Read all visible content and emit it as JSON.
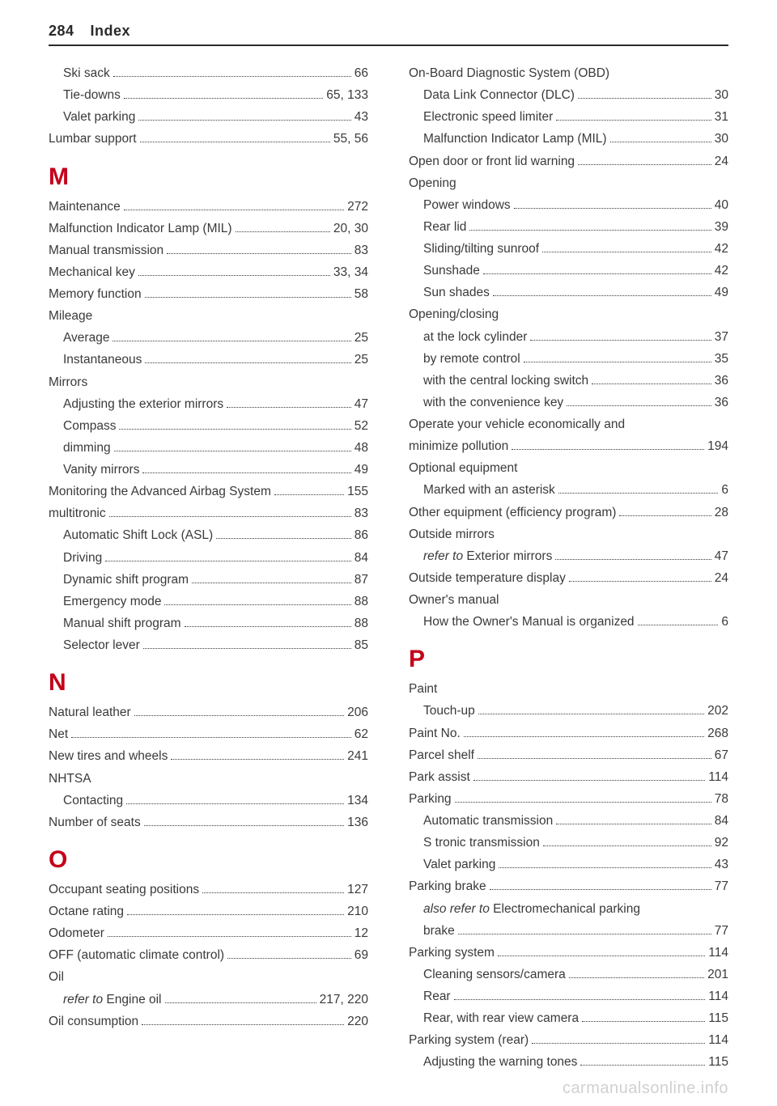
{
  "header": {
    "page_number": "284",
    "title": "Index"
  },
  "watermark": "carmanualsonline.info",
  "left": {
    "pre": [
      {
        "label": "Ski sack",
        "page": "66",
        "sub": true
      },
      {
        "label": "Tie-downs",
        "page": "65, 133",
        "sub": true
      },
      {
        "label": "Valet parking",
        "page": "43",
        "sub": true
      },
      {
        "label": "Lumbar support",
        "page": "55, 56"
      }
    ],
    "M": {
      "letter": "M",
      "items": [
        {
          "label": "Maintenance",
          "page": "272"
        },
        {
          "label": "Malfunction Indicator Lamp (MIL)",
          "page": "20, 30"
        },
        {
          "label": "Manual transmission",
          "page": "83"
        },
        {
          "label": "Mechanical key",
          "page": "33, 34"
        },
        {
          "label": "Memory function",
          "page": "58"
        },
        {
          "label": "Mileage",
          "nopage": true
        },
        {
          "label": "Average",
          "page": "25",
          "sub": true
        },
        {
          "label": "Instantaneous",
          "page": "25",
          "sub": true
        },
        {
          "label": "Mirrors",
          "nopage": true
        },
        {
          "label": "Adjusting the exterior mirrors",
          "page": "47",
          "sub": true
        },
        {
          "label": "Compass",
          "page": "52",
          "sub": true
        },
        {
          "label": "dimming",
          "page": "48",
          "sub": true
        },
        {
          "label": "Vanity mirrors",
          "page": "49",
          "sub": true
        },
        {
          "label": "Monitoring the Advanced Airbag System",
          "page": "155",
          "tight": true
        },
        {
          "label": "multitronic",
          "page": "83"
        },
        {
          "label": "Automatic Shift Lock (ASL)",
          "page": "86",
          "sub": true
        },
        {
          "label": "Driving",
          "page": "84",
          "sub": true
        },
        {
          "label": "Dynamic shift program",
          "page": "87",
          "sub": true
        },
        {
          "label": "Emergency mode",
          "page": "88",
          "sub": true
        },
        {
          "label": "Manual shift program",
          "page": "88",
          "sub": true
        },
        {
          "label": "Selector lever",
          "page": "85",
          "sub": true
        }
      ]
    },
    "N": {
      "letter": "N",
      "items": [
        {
          "label": "Natural leather",
          "page": "206"
        },
        {
          "label": "Net",
          "page": "62"
        },
        {
          "label": "New tires and wheels",
          "page": "241"
        },
        {
          "label": "NHTSA",
          "nopage": true
        },
        {
          "label": "Contacting",
          "page": "134",
          "sub": true
        },
        {
          "label": "Number of seats",
          "page": "136"
        }
      ]
    },
    "O": {
      "letter": "O",
      "items": [
        {
          "label": "Occupant seating positions",
          "page": "127"
        },
        {
          "label": "Octane rating",
          "page": "210"
        },
        {
          "label": "Odometer",
          "page": "12"
        },
        {
          "label": "OFF (automatic climate control)",
          "page": "69"
        },
        {
          "label": "Oil",
          "nopage": true
        },
        {
          "italic_prefix": "refer to ",
          "label": "Engine oil",
          "page": "217, 220",
          "sub": true
        },
        {
          "label": "Oil consumption",
          "page": "220"
        }
      ]
    }
  },
  "right": {
    "pre": [
      {
        "label": "On-Board Diagnostic System (OBD)",
        "nopage": true
      },
      {
        "label": "Data Link Connector (DLC)",
        "page": "30",
        "sub": true
      },
      {
        "label": "Electronic speed limiter",
        "page": "31",
        "sub": true
      },
      {
        "label": "Malfunction Indicator Lamp (MIL)",
        "page": "30",
        "sub": true
      },
      {
        "label": "Open door or front lid warning",
        "page": "24"
      },
      {
        "label": "Opening",
        "nopage": true
      },
      {
        "label": "Power windows",
        "page": "40",
        "sub": true
      },
      {
        "label": "Rear lid",
        "page": "39",
        "sub": true
      },
      {
        "label": "Sliding/tilting sunroof",
        "page": "42",
        "sub": true
      },
      {
        "label": "Sunshade",
        "page": "42",
        "sub": true
      },
      {
        "label": "Sun shades",
        "page": "49",
        "sub": true
      },
      {
        "label": "Opening/closing",
        "nopage": true
      },
      {
        "label": "at the lock cylinder",
        "page": "37",
        "sub": true
      },
      {
        "label": "by remote control",
        "page": "35",
        "sub": true
      },
      {
        "label": "with the central locking switch",
        "page": "36",
        "sub": true
      },
      {
        "label": "with the convenience key",
        "page": "36",
        "sub": true
      },
      {
        "wrap_lines": [
          "Operate your vehicle economically and"
        ],
        "label": "minimize pollution",
        "page": "194"
      },
      {
        "label": "Optional equipment",
        "nopage": true
      },
      {
        "label": "Marked with an asterisk",
        "page": "6",
        "sub": true
      },
      {
        "label": "Other equipment (efficiency program)",
        "page": "28"
      },
      {
        "label": "Outside mirrors",
        "nopage": true
      },
      {
        "italic_prefix": "refer to ",
        "label": "Exterior mirrors",
        "page": "47",
        "sub": true
      },
      {
        "label": "Outside temperature display",
        "page": "24"
      },
      {
        "label": "Owner's manual",
        "nopage": true
      },
      {
        "label": "How the Owner's Manual is organized",
        "page": "6",
        "sub": true
      }
    ],
    "P": {
      "letter": "P",
      "items": [
        {
          "label": "Paint",
          "nopage": true
        },
        {
          "label": "Touch-up",
          "page": "202",
          "sub": true
        },
        {
          "label": "Paint No.",
          "page": "268"
        },
        {
          "label": "Parcel shelf",
          "page": "67"
        },
        {
          "label": "Park assist",
          "page": "114"
        },
        {
          "label": "Parking",
          "page": "78"
        },
        {
          "label": "Automatic transmission",
          "page": "84",
          "sub": true
        },
        {
          "label": "S tronic transmission",
          "page": "92",
          "sub": true
        },
        {
          "label": "Valet parking",
          "page": "43",
          "sub": true
        },
        {
          "label": "Parking brake",
          "page": "77"
        },
        {
          "wrap_lines_sub": [
            "<i>also refer to</i> Electromechanical parking"
          ],
          "label": "brake",
          "page": "77",
          "sub": true
        },
        {
          "label": "Parking system",
          "page": "114"
        },
        {
          "label": "Cleaning sensors/camera",
          "page": "201",
          "sub": true
        },
        {
          "label": "Rear",
          "page": "114",
          "sub": true
        },
        {
          "label": "Rear, with rear view camera",
          "page": "115",
          "sub": true
        },
        {
          "label": "Parking system (rear)",
          "page": "114"
        },
        {
          "label": "Adjusting the warning tones",
          "page": "115",
          "sub": true
        }
      ]
    }
  }
}
